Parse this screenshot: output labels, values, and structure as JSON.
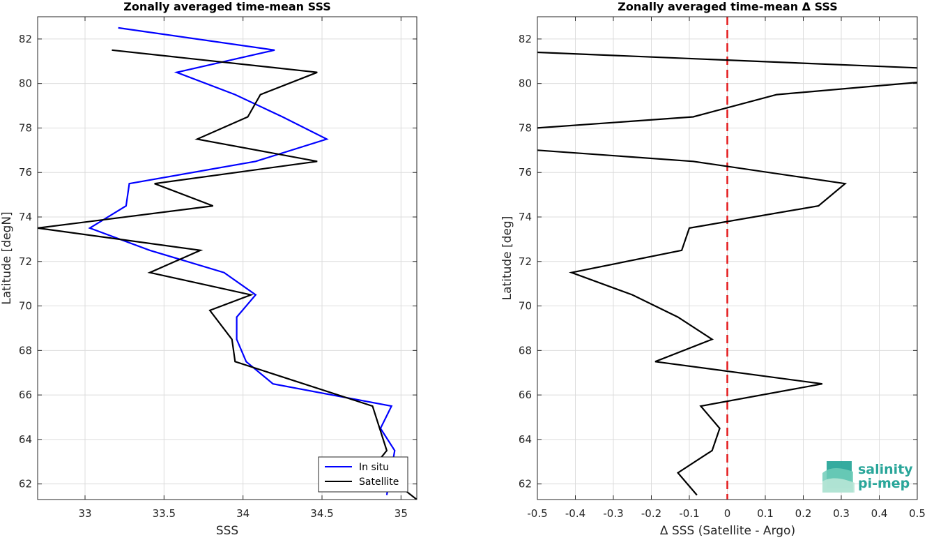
{
  "colors": {
    "insitu": "#0000ff",
    "satellite": "#000000",
    "zero_line": "#e41a1c",
    "logo": "#2aa69a"
  },
  "logo": {
    "line1": "salinity",
    "line2": "pi-mep"
  },
  "chart_data": [
    {
      "type": "line",
      "title": "Zonally averaged time-mean SSS",
      "xlabel": "SSS",
      "ylabel": "Latitude [degN]",
      "xlim": [
        32.7,
        35.1
      ],
      "ylim": [
        61.3,
        83
      ],
      "xticks": [
        33,
        33.5,
        34,
        34.5,
        35
      ],
      "xtick_labels": [
        "33",
        "33.5",
        "34",
        "34.5",
        "35"
      ],
      "yticks": [
        62,
        64,
        66,
        68,
        70,
        72,
        74,
        76,
        78,
        80,
        82
      ],
      "ytick_labels": [
        "62",
        "64",
        "66",
        "68",
        "70",
        "72",
        "74",
        "76",
        "78",
        "80",
        "82"
      ],
      "grid": true,
      "legend_position": "bottom-right",
      "series": [
        {
          "name": "In situ",
          "x": [
            33.21,
            34.2,
            33.58,
            33.95,
            34.25,
            34.53,
            34.08,
            33.28,
            33.26,
            33.03,
            33.41,
            33.88,
            34.08,
            33.96,
            33.96,
            34.02,
            34.19,
            34.94,
            34.87,
            34.96,
            34.91
          ],
          "y": [
            82.5,
            81.5,
            80.5,
            79.5,
            78.5,
            77.5,
            76.5,
            75.5,
            74.5,
            73.5,
            72.5,
            71.5,
            70.5,
            69.5,
            68.5,
            67.5,
            66.5,
            65.5,
            64.5,
            63.5,
            61.5
          ]
        },
        {
          "name": "Satellite",
          "x": [
            33.17,
            34.47,
            34.11,
            34.03,
            33.71,
            34.47,
            33.44,
            33.81,
            32.7,
            33.73,
            33.41,
            34.05,
            33.79,
            33.93,
            33.95,
            34.82,
            34.91,
            34.83,
            35.1
          ],
          "y": [
            81.5,
            80.5,
            79.5,
            78.5,
            77.5,
            76.5,
            75.5,
            74.5,
            73.5,
            72.5,
            71.5,
            70.5,
            69.8,
            68.5,
            67.5,
            65.5,
            63.5,
            62.8,
            61.3
          ]
        }
      ]
    },
    {
      "type": "line",
      "title": "Zonally averaged time-mean Δ SSS",
      "xlabel": "Δ SSS (Satellite - Argo)",
      "ylabel": "Latitude [deg]",
      "xlim": [
        -0.5,
        0.5
      ],
      "ylim": [
        61.3,
        83
      ],
      "xticks": [
        -0.5,
        -0.4,
        -0.3,
        -0.2,
        -0.1,
        0,
        0.1,
        0.2,
        0.3,
        0.4,
        0.5
      ],
      "xtick_labels": [
        "-0.5",
        "-0.4",
        "-0.3",
        "-0.2",
        "-0.1",
        "0",
        "0.1",
        "0.2",
        "0.3",
        "0.4",
        "0.5"
      ],
      "yticks": [
        62,
        64,
        66,
        68,
        70,
        72,
        74,
        76,
        78,
        80,
        82
      ],
      "ytick_labels": [
        "62",
        "64",
        "66",
        "68",
        "70",
        "72",
        "74",
        "76",
        "78",
        "80",
        "82"
      ],
      "grid": true,
      "reference_line": {
        "x": 0,
        "style": "dashed"
      },
      "series": [
        {
          "x": [
            -0.5,
            0.5,
            null,
            0.5,
            0.13,
            -0.09,
            -0.5,
            null,
            -0.5,
            -0.09,
            0.31,
            0.24,
            -0.1,
            -0.12,
            -0.41,
            -0.25,
            -0.13,
            -0.04,
            -0.19,
            0.25,
            -0.07,
            -0.02,
            -0.04,
            -0.13,
            -0.08
          ],
          "y": [
            81.4,
            80.7,
            null,
            80.05,
            79.5,
            78.5,
            78.0,
            null,
            77.0,
            76.5,
            75.5,
            74.5,
            73.5,
            72.5,
            71.5,
            70.5,
            69.5,
            68.5,
            67.5,
            66.5,
            65.5,
            64.5,
            63.5,
            62.5,
            61.5
          ]
        }
      ]
    }
  ]
}
